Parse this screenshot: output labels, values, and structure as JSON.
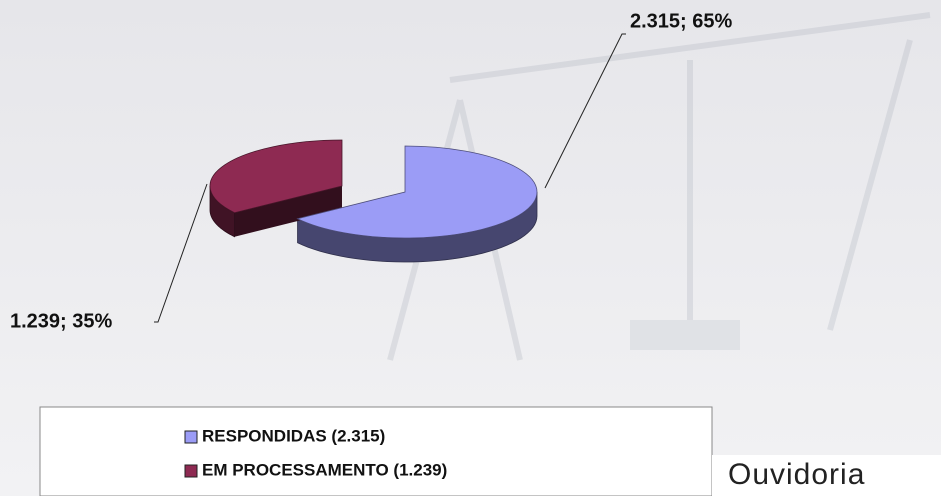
{
  "chart_data": {
    "type": "pie3d",
    "categories": [
      "RESPONDIDAS (2.315)",
      "EM PROCESSAMENTO (1.239)"
    ],
    "values": [
      2315,
      1239
    ],
    "value_labels": [
      "2.315; 65%",
      "1.239; 35%"
    ],
    "colors": [
      "#9b9cf6",
      "#8e2a52"
    ],
    "legend": "bottom"
  },
  "logo_text": "Ouvidoria"
}
